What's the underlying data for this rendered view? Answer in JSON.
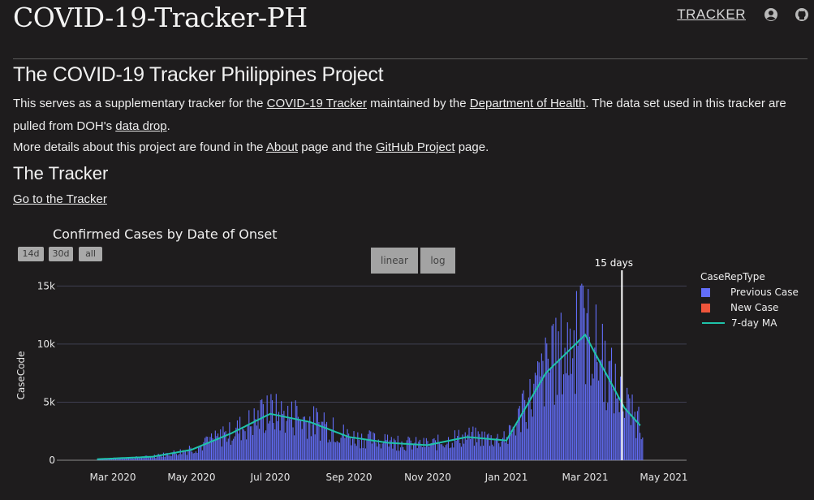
{
  "site": {
    "title": "COVID-19-Tracker-PH"
  },
  "nav": {
    "tracker_link": "TRACKER",
    "account_icon": "account-icon",
    "github_icon": "github-icon"
  },
  "intro": {
    "heading": "The COVID-19 Tracker Philippines Project",
    "p1_a": "This serves as a supplementary tracker for the ",
    "p1_link1": "COVID-19 Tracker",
    "p1_b": " maintained by the ",
    "p1_link2": "Department of Health",
    "p1_c": ". The data set used in this tracker are pulled from DOH's ",
    "p1_link3": "data drop",
    "p1_d": ".",
    "p2_a": "More details about this project are found in the ",
    "p2_link1": "About",
    "p2_b": " page and the ",
    "p2_link2": "GitHub Project",
    "p2_c": " page."
  },
  "tracker": {
    "heading": "The Tracker",
    "link": "Go to the Tracker"
  },
  "chart_controls": {
    "range_buttons": [
      "14d",
      "30d",
      "all"
    ],
    "scale_buttons": [
      "linear",
      "log"
    ]
  },
  "colors": {
    "bars": "#636efa",
    "new_case": "#ef553b",
    "ma_line": "#1fc3aa",
    "background": "#1e1c1d"
  },
  "chart_data": {
    "type": "bar",
    "title": "Confirmed Cases by Date of Onset",
    "xlabel": "",
    "ylabel": "CaseCode",
    "ylim": [
      0,
      16000
    ],
    "yticks": [
      0,
      5000,
      10000,
      15000
    ],
    "ytick_labels": [
      "0",
      "5k",
      "10k",
      "15k"
    ],
    "xtick_labels": [
      "Mar 2020",
      "May 2020",
      "Jul 2020",
      "Sep 2020",
      "Nov 2020",
      "Jan 2021",
      "Mar 2021",
      "May 2021"
    ],
    "annotation": "15 days",
    "legend": {
      "title": "CaseRepType",
      "placement": "right",
      "entries": [
        "Previous Case",
        "New Case",
        "7-day MA"
      ]
    },
    "ma_month_values": [
      0,
      150,
      300,
      900,
      2300,
      4000,
      3300,
      2000,
      1500,
      1300,
      2000,
      1700,
      7500,
      10800,
      4500,
      2800
    ],
    "ma_month_index": [
      0,
      1,
      2,
      3,
      4,
      5,
      6,
      7,
      8,
      9,
      10,
      11,
      12,
      13,
      14,
      14.45
    ]
  }
}
